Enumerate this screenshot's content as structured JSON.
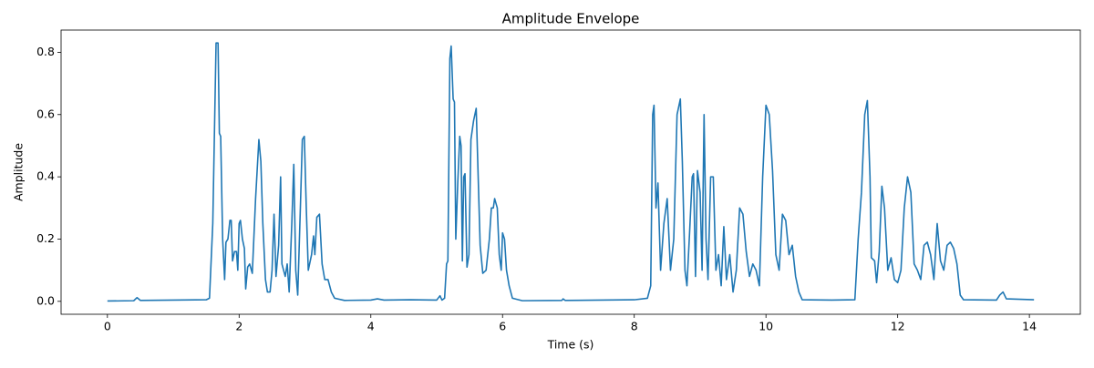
{
  "chart_data": {
    "type": "line",
    "title": "Amplitude Envelope",
    "x_label": "Time (s)",
    "y_label": "Amplitude",
    "x": [
      0,
      0.4,
      0.45,
      0.5,
      1.0,
      1.5,
      1.55,
      1.6,
      1.65,
      1.68,
      1.7,
      1.72,
      1.75,
      1.78,
      1.8,
      1.83,
      1.86,
      1.88,
      1.9,
      1.93,
      1.96,
      1.98,
      2.0,
      2.02,
      2.05,
      2.08,
      2.1,
      2.13,
      2.16,
      2.2,
      2.25,
      2.3,
      2.33,
      2.36,
      2.4,
      2.43,
      2.47,
      2.5,
      2.53,
      2.56,
      2.6,
      2.63,
      2.65,
      2.7,
      2.73,
      2.76,
      2.8,
      2.83,
      2.86,
      2.89,
      2.93,
      2.96,
      2.99,
      3.02,
      3.05,
      3.1,
      3.13,
      3.15,
      3.18,
      3.22,
      3.26,
      3.3,
      3.35,
      3.4,
      3.45,
      3.6,
      4.0,
      4.1,
      4.2,
      4.6,
      5.0,
      5.05,
      5.08,
      5.12,
      5.15,
      5.17,
      5.2,
      5.22,
      5.25,
      5.27,
      5.29,
      5.32,
      5.35,
      5.37,
      5.39,
      5.41,
      5.43,
      5.46,
      5.49,
      5.52,
      5.56,
      5.6,
      5.63,
      5.66,
      5.7,
      5.75,
      5.8,
      5.83,
      5.86,
      5.88,
      5.92,
      5.95,
      5.98,
      6.0,
      6.03,
      6.06,
      6.1,
      6.15,
      6.3,
      6.9,
      6.92,
      6.95,
      8.0,
      8.2,
      8.25,
      8.28,
      8.3,
      8.33,
      8.36,
      8.4,
      8.45,
      8.5,
      8.55,
      8.6,
      8.65,
      8.7,
      8.73,
      8.77,
      8.8,
      8.84,
      8.88,
      8.9,
      8.93,
      8.96,
      9.0,
      9.03,
      9.06,
      9.09,
      9.12,
      9.16,
      9.2,
      9.24,
      9.28,
      9.32,
      9.36,
      9.4,
      9.45,
      9.5,
      9.55,
      9.6,
      9.65,
      9.7,
      9.75,
      9.8,
      9.85,
      9.9,
      9.95,
      10.0,
      10.05,
      10.1,
      10.15,
      10.2,
      10.25,
      10.3,
      10.35,
      10.4,
      10.45,
      10.5,
      10.55,
      11.0,
      11.35,
      11.4,
      11.45,
      11.5,
      11.54,
      11.58,
      11.6,
      11.65,
      11.68,
      11.72,
      11.76,
      11.8,
      11.85,
      11.9,
      11.95,
      12.0,
      12.05,
      12.1,
      12.15,
      12.2,
      12.25,
      12.3,
      12.35,
      12.4,
      12.45,
      12.5,
      12.55,
      12.6,
      12.65,
      12.7,
      12.75,
      12.8,
      12.85,
      12.9,
      12.95,
      13.0,
      13.5,
      13.55,
      13.6,
      13.65,
      14.07
    ],
    "series": [
      {
        "color": "#1f77b4",
        "values": [
          0.001,
          0.002,
          0.012,
          0.003,
          0.004,
          0.005,
          0.01,
          0.25,
          0.83,
          0.83,
          0.54,
          0.53,
          0.2,
          0.07,
          0.19,
          0.2,
          0.26,
          0.26,
          0.13,
          0.16,
          0.16,
          0.1,
          0.25,
          0.26,
          0.2,
          0.17,
          0.04,
          0.11,
          0.12,
          0.09,
          0.33,
          0.52,
          0.45,
          0.25,
          0.07,
          0.03,
          0.03,
          0.1,
          0.28,
          0.08,
          0.18,
          0.4,
          0.12,
          0.08,
          0.12,
          0.03,
          0.25,
          0.44,
          0.1,
          0.02,
          0.3,
          0.52,
          0.53,
          0.3,
          0.1,
          0.15,
          0.21,
          0.15,
          0.27,
          0.28,
          0.12,
          0.07,
          0.07,
          0.03,
          0.01,
          0.003,
          0.004,
          0.008,
          0.004,
          0.005,
          0.004,
          0.018,
          0.004,
          0.01,
          0.12,
          0.13,
          0.78,
          0.82,
          0.65,
          0.64,
          0.2,
          0.38,
          0.53,
          0.5,
          0.13,
          0.4,
          0.41,
          0.11,
          0.15,
          0.52,
          0.58,
          0.62,
          0.4,
          0.18,
          0.09,
          0.1,
          0.2,
          0.3,
          0.3,
          0.33,
          0.3,
          0.15,
          0.1,
          0.22,
          0.2,
          0.1,
          0.05,
          0.01,
          0.002,
          0.003,
          0.008,
          0.003,
          0.005,
          0.01,
          0.05,
          0.6,
          0.63,
          0.3,
          0.38,
          0.1,
          0.25,
          0.33,
          0.1,
          0.2,
          0.6,
          0.65,
          0.45,
          0.1,
          0.05,
          0.22,
          0.4,
          0.41,
          0.08,
          0.42,
          0.35,
          0.1,
          0.6,
          0.2,
          0.07,
          0.4,
          0.4,
          0.1,
          0.15,
          0.05,
          0.24,
          0.07,
          0.15,
          0.03,
          0.1,
          0.3,
          0.28,
          0.16,
          0.08,
          0.12,
          0.1,
          0.05,
          0.4,
          0.63,
          0.6,
          0.42,
          0.15,
          0.1,
          0.28,
          0.26,
          0.15,
          0.18,
          0.08,
          0.03,
          0.005,
          0.004,
          0.005,
          0.2,
          0.35,
          0.6,
          0.645,
          0.4,
          0.14,
          0.13,
          0.06,
          0.16,
          0.37,
          0.3,
          0.1,
          0.14,
          0.07,
          0.06,
          0.1,
          0.3,
          0.4,
          0.35,
          0.12,
          0.1,
          0.07,
          0.18,
          0.19,
          0.15,
          0.07,
          0.25,
          0.13,
          0.1,
          0.18,
          0.19,
          0.17,
          0.12,
          0.02,
          0.005,
          0.004,
          0.02,
          0.03,
          0.008,
          0.005
        ]
      }
    ],
    "xlim": [
      -0.7035,
      14.7735
    ],
    "ylim": [
      -0.0415,
      0.8715
    ],
    "xticks": [
      0,
      2,
      4,
      6,
      8,
      10,
      12,
      14
    ],
    "yticks": [
      {
        "value": 0,
        "label": "0.0"
      },
      0.2,
      0.4,
      0.6,
      0.8
    ]
  }
}
